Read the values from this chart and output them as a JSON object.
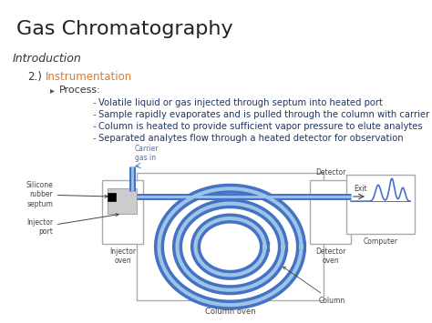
{
  "title": "Gas Chromatography",
  "subtitle": "Introduction",
  "item_num": "2.)",
  "item_label": "Instrumentation",
  "item_label_color": "#E87722",
  "sub_label": "Process:",
  "bullets": [
    "Volatile liquid or gas injected through septum into heated port",
    "Sample rapidly evaporates and is pulled through the column with carrier gas",
    "Column is heated to provide sufficient vapor pressure to elute analytes",
    "Separated analytes flow through a heated detector for observation"
  ],
  "bullet_color": "#1F3864",
  "background_color": "#FFFFFF",
  "diagram_color": "#4472C4",
  "diagram_light": "#9DC3E6",
  "box_edge_color": "#AAAAAA",
  "label_color": "#444444",
  "carrier_label_color": "#4472C4",
  "title_color": "#222222",
  "subtitle_color": "#333333",
  "process_color": "#333333"
}
